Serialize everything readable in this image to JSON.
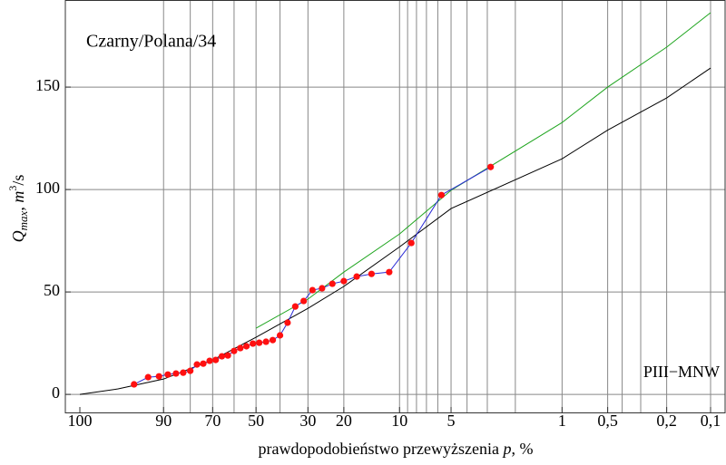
{
  "chart_data": {
    "type": "probability_line",
    "annotations": [
      {
        "text": "Czarny/Polana/34",
        "color": "#1a1adb"
      },
      {
        "text": "PIII−MNW",
        "color": "#9c6a34"
      }
    ],
    "ylabel": [
      "Q",
      "max",
      ", ",
      "m",
      "3",
      "/s"
    ],
    "xlabel": [
      "prawdopodobieństwo przewyższenia ",
      "p",
      ", %"
    ],
    "xlim": [
      100,
      0.1
    ],
    "ylim": [
      -8.8,
      192.5
    ],
    "xticks": [
      100,
      90,
      70,
      50,
      30,
      20,
      10,
      5,
      1,
      {
        "value": 0.5,
        "label": "0,5"
      },
      {
        "value": 0.2,
        "label": "0,2"
      },
      {
        "value": 0.1,
        "label": "0,1"
      }
    ],
    "xgrid": [
      90,
      80,
      70,
      60,
      50,
      40,
      30,
      20,
      10,
      9,
      8,
      7,
      6,
      5,
      4,
      3,
      2,
      1,
      0.5,
      0.4,
      0.3,
      0.2,
      0.1
    ],
    "yticks": [
      0,
      50,
      100,
      150
    ],
    "grid": true,
    "series": [
      {
        "color": "#000000",
        "x": [
          100,
          99,
          90,
          70,
          50,
          30,
          20,
          10,
          5,
          1,
          0.5,
          0.2,
          0.1
        ],
        "values": [
          0,
          2.7,
          7.5,
          16.8,
          27.9,
          42,
          52.7,
          72,
          90.7,
          115,
          129,
          144.7,
          159.3
        ]
      },
      {
        "color": "#1fa51f",
        "x": [
          50,
          30,
          20,
          10,
          5,
          1,
          0.5,
          0.2,
          0.1
        ],
        "values": [
          32.3,
          46.5,
          59.7,
          78.3,
          99.6,
          132.7,
          150,
          169.5,
          186.3
        ]
      },
      {
        "color": "#2b2bd6",
        "marker_color": "#ff1010",
        "x": [
          2.86,
          5.71,
          8.57,
          11.43,
          14.29,
          17.14,
          20,
          22.86,
          25.7,
          28.57,
          31.4,
          34.3,
          37.1,
          40,
          42.9,
          45.7,
          48.6,
          51.4,
          54.3,
          57.1,
          60,
          62.9,
          65.7,
          68.6,
          71.4,
          74.3,
          77.1,
          80,
          82.9,
          85.7,
          88.6,
          91.4,
          94.3,
          97.1
        ],
        "values": [
          111,
          97.3,
          73.9,
          59.7,
          58.8,
          57.5,
          55.3,
          54,
          51.8,
          50.9,
          45.6,
          42.9,
          35,
          28.8,
          26.5,
          25.7,
          25.2,
          24.8,
          23.5,
          22.6,
          21.2,
          19,
          18.6,
          16.8,
          16.4,
          15,
          14.6,
          11.5,
          10.6,
          10.2,
          9.7,
          8.8,
          8.4,
          4.9
        ]
      }
    ]
  }
}
